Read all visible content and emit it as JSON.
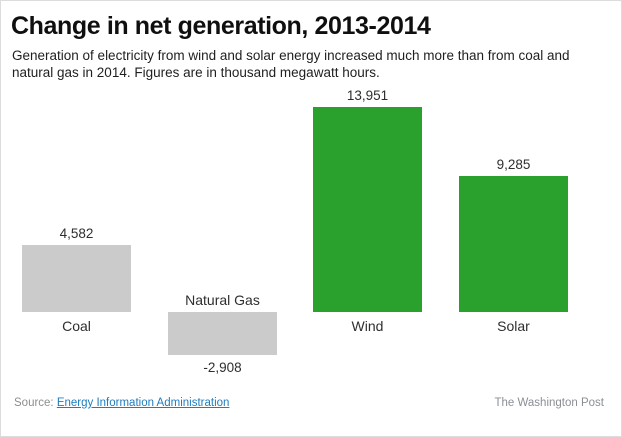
{
  "header": {
    "title": "Change in net generation, 2013-2014",
    "subtitle": "Generation of electricity from wind and solar energy increased much more than from coal and natural gas in 2014. Figures are in thousand megawatt hours."
  },
  "chart_data": {
    "type": "bar",
    "title": "Change in net generation, 2013-2014",
    "unit": "thousand megawatt hours",
    "categories": [
      "Coal",
      "Natural Gas",
      "Wind",
      "Solar"
    ],
    "values": [
      4582,
      -2908,
      13951,
      9285
    ],
    "value_labels": [
      "4,582",
      "-2,908",
      "13,951",
      "9,285"
    ],
    "colors": [
      "#cbcbcb",
      "#cbcbcb",
      "#2aa12c",
      "#2aa12c"
    ],
    "baseline": 0,
    "ylim": [
      -2908,
      13951
    ],
    "grid": false,
    "legend": false,
    "xlabel": "",
    "ylabel": ""
  },
  "footer": {
    "source_prefix": "Source: ",
    "source_link": "Energy Information Administration",
    "credit": "The Washington Post",
    "link_color": "#1e7dbe"
  }
}
